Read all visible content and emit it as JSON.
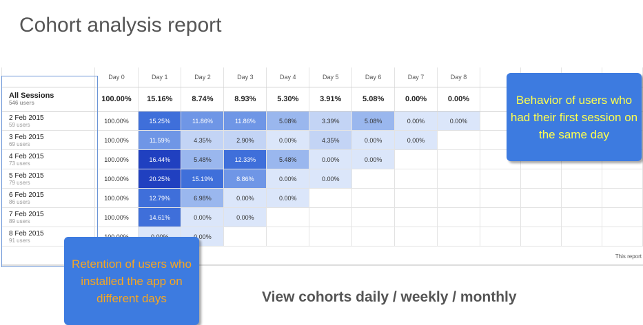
{
  "title": "Cohort analysis report",
  "table": {
    "headers": [
      "Day 0",
      "Day 1",
      "Day 2",
      "Day 3",
      "Day 4",
      "Day 5",
      "Day 6",
      "Day 7",
      "Day 8"
    ],
    "all_sessions": {
      "label": "All Sessions",
      "sub": "546 users",
      "values": [
        "100.00%",
        "15.16%",
        "8.74%",
        "8.93%",
        "5.30%",
        "3.91%",
        "5.08%",
        "0.00%",
        "0.00%"
      ]
    },
    "rows": [
      {
        "label": "2 Feb 2015",
        "sub": "59 users",
        "values": [
          "100.00%",
          "15.25%",
          "11.86%",
          "11.86%",
          "5.08%",
          "3.39%",
          "5.08%",
          "0.00%",
          "0.00%"
        ]
      },
      {
        "label": "3 Feb 2015",
        "sub": "69 users",
        "values": [
          "100.00%",
          "11.59%",
          "4.35%",
          "2.90%",
          "0.00%",
          "4.35%",
          "0.00%",
          "0.00%",
          ""
        ]
      },
      {
        "label": "4 Feb 2015",
        "sub": "73 users",
        "values": [
          "100.00%",
          "16.44%",
          "5.48%",
          "12.33%",
          "5.48%",
          "0.00%",
          "0.00%",
          "",
          ""
        ]
      },
      {
        "label": "5 Feb 2015",
        "sub": "79 users",
        "values": [
          "100.00%",
          "20.25%",
          "15.19%",
          "8.86%",
          "0.00%",
          "0.00%",
          "",
          "",
          ""
        ]
      },
      {
        "label": "6 Feb 2015",
        "sub": "86 users",
        "values": [
          "100.00%",
          "12.79%",
          "6.98%",
          "0.00%",
          "0.00%",
          "",
          "",
          "",
          ""
        ]
      },
      {
        "label": "7 Feb 2015",
        "sub": "89 users",
        "values": [
          "100.00%",
          "14.61%",
          "0.00%",
          "0.00%",
          "",
          "",
          "",
          "",
          ""
        ]
      },
      {
        "label": "8 Feb 2015",
        "sub": "91 users",
        "values": [
          "100.00%",
          "0.00%",
          "0.00%",
          "",
          "",
          "",
          "",
          "",
          ""
        ]
      }
    ],
    "footer_note": "This report"
  },
  "colors": {
    "callout_bg": "#3d7be0",
    "callout_right_text": "#ffff4d",
    "callout_left_text": "#f5a623",
    "cell_scale": [
      "#dbe6fa",
      "#c3d4f5",
      "#9ab7ee",
      "#6f96e6",
      "#3f6fda",
      "#2040c0"
    ]
  },
  "callouts": {
    "right": "Behavior of users who had their first session on the same day",
    "left": "Retention of users who installed the app on different days"
  },
  "caption": "View cohorts daily / weekly / monthly"
}
